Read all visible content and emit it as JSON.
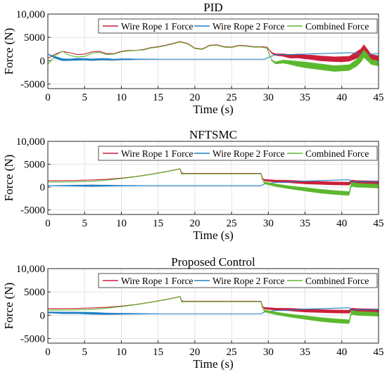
{
  "colors": {
    "wire1": "#cc1f3a",
    "wire2": "#1f7fc4",
    "combined": "#5cb82e",
    "axis": "#262626",
    "grid": "#dcdcdc"
  },
  "chart_data": [
    {
      "type": "line",
      "title": "PID",
      "xlabel": "Time (s)",
      "ylabel": "Force (N)",
      "xlim": [
        0,
        45
      ],
      "ylim": [
        -6000,
        10000
      ],
      "xticks": [
        "0",
        "5",
        "10",
        "15",
        "20",
        "25",
        "30",
        "35",
        "40",
        "45"
      ],
      "yticks": [
        "10,000",
        "5000",
        "0",
        "-5000"
      ],
      "grid": true,
      "legend": "top-right",
      "series": [
        {
          "name": "Wire Rope 1 Force",
          "color_key": "wire1",
          "x": [
            0,
            1,
            2,
            3,
            4,
            5,
            6,
            7,
            8,
            9,
            10,
            11,
            12,
            13,
            14,
            15,
            16,
            17,
            18,
            19,
            20,
            21,
            22,
            23,
            24,
            25,
            26,
            27,
            28,
            29,
            29.8,
            30.5,
            31,
            32,
            33,
            34,
            35,
            36,
            37,
            38,
            39,
            40,
            41,
            42,
            42.6,
            43,
            43.5,
            44,
            45
          ],
          "y": [
            500,
            1400,
            2000,
            1700,
            1300,
            1400,
            1900,
            2000,
            1500,
            1500,
            2000,
            2200,
            2200,
            2400,
            2800,
            3000,
            3300,
            3700,
            4100,
            3700,
            2700,
            2500,
            3300,
            3400,
            3000,
            2900,
            3300,
            3200,
            3000,
            3000,
            2900,
            1600,
            1300,
            1200,
            900,
            1000,
            800,
            700,
            500,
            400,
            300,
            300,
            400,
            1200,
            1800,
            2700,
            1800,
            800,
            500
          ],
          "noise": [
            0,
            0,
            0,
            0,
            0,
            0,
            0,
            0,
            0,
            0,
            0,
            0,
            0,
            0,
            0,
            0,
            0,
            0,
            0,
            0,
            0,
            0,
            0,
            0,
            0,
            0,
            0,
            0,
            0,
            0,
            0,
            100,
            150,
            250,
            350,
            400,
            400,
            450,
            500,
            500,
            500,
            550,
            500,
            700,
            700,
            700,
            600,
            500,
            500
          ]
        },
        {
          "name": "Wire Rope 2 Force",
          "color_key": "wire2",
          "x": [
            0,
            1,
            2,
            3,
            4,
            5,
            6,
            7,
            8,
            9,
            10,
            11,
            12,
            15,
            20,
            25,
            29.5,
            30,
            31,
            33,
            35,
            37,
            39,
            41,
            42,
            43,
            44,
            45
          ],
          "y": [
            1400,
            700,
            200,
            200,
            300,
            300,
            200,
            300,
            300,
            200,
            300,
            300,
            300,
            300,
            300,
            300,
            300,
            700,
            1300,
            1300,
            1400,
            1500,
            1600,
            1700,
            1600,
            1000,
            1400,
            1500
          ],
          "noise": [
            0,
            200,
            200,
            150,
            200,
            150,
            150,
            150,
            150,
            100,
            100,
            100,
            50,
            0,
            0,
            0,
            0,
            0,
            0,
            0,
            0,
            0,
            0,
            0,
            0,
            0,
            0,
            0
          ]
        },
        {
          "name": "Combined Force",
          "color_key": "combined",
          "x": [
            0,
            1,
            2,
            3,
            4,
            5,
            6,
            7,
            8,
            9,
            10,
            11,
            12,
            13,
            14,
            15,
            16,
            17,
            18,
            19,
            20,
            21,
            22,
            23,
            24,
            25,
            26,
            27,
            28,
            29,
            29.8,
            30.5,
            31,
            32,
            33,
            34,
            35,
            36,
            37,
            38,
            39,
            40,
            41,
            42,
            42.6,
            43,
            43.5,
            44,
            45
          ],
          "y": [
            -800,
            1100,
            2000,
            1100,
            800,
            900,
            1600,
            1800,
            1300,
            1400,
            1900,
            2100,
            2200,
            2300,
            2700,
            2900,
            3200,
            3600,
            4000,
            3600,
            2600,
            2400,
            3200,
            3300,
            2900,
            2800,
            3200,
            3100,
            2900,
            2900,
            2700,
            0,
            -500,
            -200,
            -400,
            -700,
            -900,
            -1100,
            -1300,
            -1500,
            -1700,
            -1600,
            -1500,
            -500,
            500,
            1500,
            700,
            -300,
            -600
          ],
          "noise": [
            0,
            0,
            0,
            0,
            0,
            0,
            0,
            0,
            0,
            0,
            0,
            0,
            0,
            0,
            0,
            0,
            0,
            0,
            0,
            0,
            0,
            0,
            0,
            0,
            0,
            0,
            0,
            0,
            0,
            0,
            0,
            100,
            200,
            300,
            400,
            500,
            600,
            600,
            600,
            600,
            600,
            600,
            600,
            700,
            800,
            800,
            700,
            500,
            500
          ]
        }
      ]
    },
    {
      "type": "line",
      "title": "NFTSMC",
      "xlabel": "Time (s)",
      "ylabel": "Force (N)",
      "xlim": [
        0,
        45
      ],
      "ylim": [
        -6000,
        10000
      ],
      "xticks": [
        "0",
        "5",
        "10",
        "15",
        "20",
        "25",
        "30",
        "35",
        "40",
        "45"
      ],
      "yticks": [
        "10,000",
        "5000",
        "0",
        "-5000"
      ],
      "grid": true,
      "legend": "top-right",
      "series": [
        {
          "name": "Wire Rope 1 Force",
          "color_key": "wire1",
          "x": [
            0,
            2,
            4,
            6,
            8,
            10,
            12,
            14,
            16,
            18,
            18.2,
            18.5,
            20,
            25,
            29,
            29.2,
            29.5,
            31,
            33,
            35,
            37,
            39,
            41,
            41.3,
            42,
            45
          ],
          "y": [
            1400,
            1400,
            1450,
            1550,
            1700,
            1950,
            2300,
            2800,
            3350,
            4000,
            3100,
            3000,
            3000,
            3000,
            3000,
            1900,
            1500,
            1300,
            1200,
            1000,
            900,
            800,
            750,
            1200,
            1100,
            1000
          ],
          "noise": [
            0,
            0,
            0,
            0,
            0,
            0,
            0,
            0,
            0,
            0,
            0,
            0,
            0,
            0,
            0,
            0,
            150,
            200,
            250,
            300,
            300,
            300,
            300,
            300,
            300,
            300
          ]
        },
        {
          "name": "Wire Rope 2 Force",
          "color_key": "wire2",
          "x": [
            0,
            2,
            4,
            6,
            8,
            10,
            15,
            20,
            29,
            29.5,
            31,
            33,
            35,
            37,
            39,
            41,
            41.3,
            42,
            45
          ],
          "y": [
            300,
            300,
            300,
            300,
            300,
            300,
            300,
            300,
            300,
            700,
            1000,
            1100,
            1300,
            1400,
            1500,
            1600,
            1000,
            1200,
            1200
          ],
          "noise": [
            0,
            50,
            100,
            150,
            100,
            50,
            0,
            0,
            0,
            0,
            0,
            0,
            0,
            0,
            0,
            0,
            0,
            0,
            0
          ]
        },
        {
          "name": "Combined Force",
          "color_key": "combined",
          "x": [
            0,
            2,
            4,
            6,
            8,
            10,
            12,
            14,
            16,
            18,
            18.2,
            18.5,
            20,
            25,
            29,
            29.2,
            29.5,
            31,
            33,
            35,
            37,
            39,
            41,
            41.3,
            42,
            45
          ],
          "y": [
            1100,
            1100,
            1150,
            1250,
            1500,
            1850,
            2250,
            2750,
            3300,
            3950,
            2800,
            2900,
            2900,
            2900,
            2900,
            1500,
            900,
            400,
            -100,
            -500,
            -900,
            -1200,
            -1400,
            600,
            400,
            200
          ],
          "noise": [
            0,
            0,
            0,
            0,
            0,
            0,
            0,
            0,
            0,
            0,
            0,
            0,
            0,
            0,
            0,
            0,
            200,
            250,
            300,
            350,
            400,
            400,
            400,
            400,
            400,
            400
          ]
        }
      ]
    },
    {
      "type": "line",
      "title": "Proposed Control",
      "xlabel": "Time (s)",
      "ylabel": "Force (N)",
      "xlim": [
        0,
        45
      ],
      "ylim": [
        -6000,
        10000
      ],
      "xticks": [
        "0",
        "5",
        "10",
        "15",
        "20",
        "25",
        "30",
        "35",
        "40",
        "45"
      ],
      "yticks": [
        "10,000",
        "5000",
        "0",
        "-5000"
      ],
      "grid": true,
      "legend": "top-right",
      "series": [
        {
          "name": "Wire Rope 1 Force",
          "color_key": "wire1",
          "x": [
            0,
            2,
            4,
            6,
            8,
            10,
            12,
            14,
            16,
            18,
            18.2,
            18.5,
            20,
            25,
            29,
            29.2,
            29.5,
            31,
            33,
            35,
            37,
            39,
            41,
            41.3,
            42,
            45
          ],
          "y": [
            1400,
            1400,
            1450,
            1550,
            1700,
            1950,
            2300,
            2800,
            3350,
            4000,
            3100,
            3000,
            3000,
            3000,
            3000,
            1900,
            1500,
            1300,
            1200,
            1000,
            900,
            800,
            750,
            1200,
            1100,
            1000
          ],
          "noise": [
            0,
            0,
            0,
            0,
            0,
            0,
            0,
            0,
            0,
            0,
            0,
            0,
            0,
            0,
            0,
            0,
            150,
            200,
            250,
            300,
            300,
            300,
            300,
            300,
            300,
            300
          ]
        },
        {
          "name": "Wire Rope 2 Force",
          "color_key": "wire2",
          "x": [
            0,
            2,
            4,
            6,
            8,
            10,
            15,
            20,
            29,
            29.5,
            31,
            33,
            35,
            37,
            39,
            41,
            41.3,
            42,
            45
          ],
          "y": [
            600,
            500,
            500,
            400,
            300,
            300,
            300,
            300,
            300,
            700,
            1000,
            1100,
            1300,
            1400,
            1500,
            1600,
            1000,
            1200,
            1200
          ],
          "noise": [
            100,
            150,
            150,
            200,
            150,
            100,
            0,
            0,
            0,
            0,
            0,
            0,
            0,
            0,
            0,
            0,
            0,
            0,
            0
          ]
        },
        {
          "name": "Combined Force",
          "color_key": "combined",
          "x": [
            0,
            2,
            4,
            6,
            8,
            10,
            12,
            14,
            16,
            18,
            18.2,
            18.5,
            20,
            25,
            29,
            29.2,
            29.5,
            31,
            33,
            35,
            37,
            39,
            41,
            41.3,
            42,
            45
          ],
          "y": [
            1100,
            1100,
            1150,
            1250,
            1500,
            1850,
            2250,
            2750,
            3300,
            3950,
            2800,
            2900,
            2900,
            2900,
            2900,
            1500,
            900,
            400,
            -100,
            -500,
            -900,
            -1200,
            -1400,
            600,
            400,
            200
          ],
          "noise": [
            0,
            0,
            0,
            0,
            0,
            0,
            0,
            0,
            0,
            0,
            0,
            0,
            0,
            0,
            0,
            0,
            200,
            250,
            300,
            350,
            400,
            400,
            400,
            400,
            400,
            400
          ]
        }
      ]
    }
  ]
}
